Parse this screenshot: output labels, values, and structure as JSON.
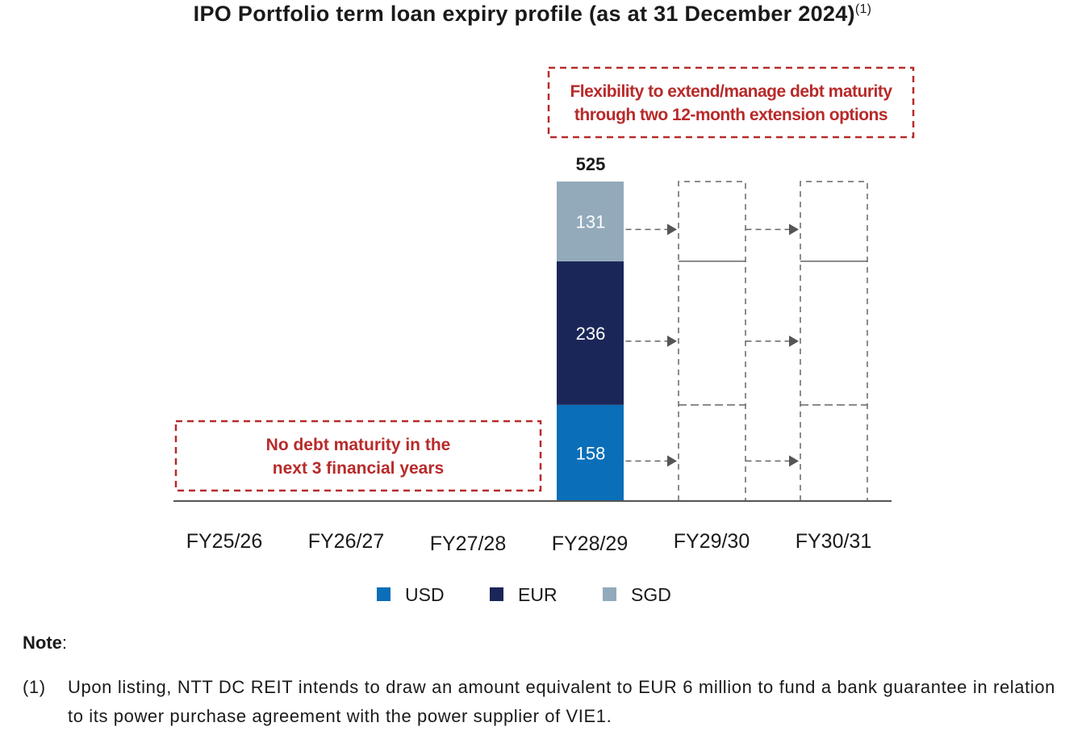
{
  "chart_data": {
    "type": "bar",
    "stacked": true,
    "title": "IPO Portfolio term loan expiry profile (as at 31 December 2024)",
    "title_superscript": "(1)",
    "categories": [
      "FY25/26",
      "FY26/27",
      "FY27/28",
      "FY28/29",
      "FY29/30",
      "FY30/31"
    ],
    "series": [
      {
        "name": "USD",
        "color": "#0a6eb8",
        "values": [
          0,
          0,
          0,
          158,
          0,
          0
        ]
      },
      {
        "name": "EUR",
        "color": "#1b2658",
        "values": [
          0,
          0,
          0,
          236,
          0,
          0
        ]
      },
      {
        "name": "SGD",
        "color": "#93aabb",
        "values": [
          0,
          0,
          0,
          131,
          0,
          0
        ]
      }
    ],
    "totals": {
      "FY28/29": 525
    },
    "total_label": "525",
    "extension_placeholders": [
      "FY29/30",
      "FY30/31"
    ],
    "ylim": [
      0,
      525
    ],
    "grid": false,
    "legend_position": "bottom",
    "annotations": [
      {
        "text_lines": [
          "No debt maturity in the",
          "next 3 financial years"
        ],
        "color": "#b82a2a"
      },
      {
        "text_lines": [
          "Flexibility to extend/manage debt maturity",
          "through two 12-month extension options"
        ],
        "color": "#b82a2a"
      }
    ]
  },
  "note": {
    "heading": "Note",
    "colon": ":",
    "footnotes": [
      {
        "marker": "(1)",
        "text": "Upon listing, NTT DC REIT intends to draw an amount equivalent to EUR 6 million to fund a bank guarantee in relation to its power purchase agreement with the power supplier of VIE1."
      }
    ]
  }
}
